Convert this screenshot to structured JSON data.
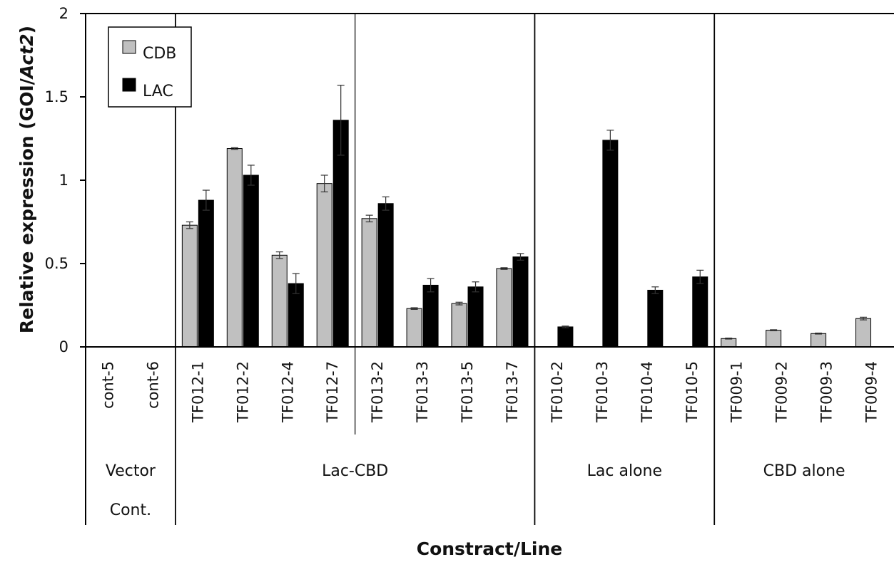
{
  "chart_data": {
    "type": "bar",
    "ylabel_prefix": "Relative expression (GOI/",
    "ylabel_italic": "Act2",
    "ylabel_suffix": ")",
    "xlabel": "Constract/Line",
    "ylim": [
      0,
      2
    ],
    "yticks": [
      "0",
      "0.5",
      "1",
      "1.5",
      "2"
    ],
    "legend_position": "top-left",
    "categories": [
      "cont-5",
      "cont-6",
      "TF012-1",
      "TF012-2",
      "TF012-4",
      "TF012-7",
      "TF013-2",
      "TF013-3",
      "TF013-5",
      "TF013-7",
      "TF010-2",
      "TF010-3",
      "TF010-4",
      "TF010-5",
      "TF009-1",
      "TF009-2",
      "TF009-3",
      "TF009-4"
    ],
    "series": [
      {
        "name": "CDB",
        "color": "#c0c0c0",
        "values": [
          0,
          0,
          0.73,
          1.19,
          0.55,
          0.98,
          0.77,
          0.23,
          0.26,
          0.47,
          0,
          0,
          0,
          0,
          0.05,
          0.1,
          0.08,
          0.17
        ],
        "errors": [
          0,
          0,
          0.02,
          0.005,
          0.02,
          0.05,
          0.02,
          0.005,
          0.008,
          0.005,
          0,
          0,
          0,
          0,
          0.003,
          0.003,
          0.003,
          0.008
        ]
      },
      {
        "name": "LAC",
        "color": "#000000",
        "values": [
          0,
          0,
          0.88,
          1.03,
          0.38,
          1.36,
          0.86,
          0.37,
          0.36,
          0.54,
          0.12,
          1.24,
          0.34,
          0.42,
          0,
          0,
          0,
          0
        ],
        "errors": [
          0,
          0,
          0.06,
          0.06,
          0.06,
          0.21,
          0.04,
          0.04,
          0.03,
          0.02,
          0.005,
          0.06,
          0.02,
          0.04,
          0,
          0,
          0,
          0
        ]
      }
    ],
    "groups": [
      {
        "label_lines": [
          "Vector",
          "Cont."
        ],
        "start": 0,
        "count": 2
      },
      {
        "label_lines": [
          "Lac-CBD"
        ],
        "start": 2,
        "count": 8
      },
      {
        "label_lines": [
          "Lac alone"
        ],
        "start": 10,
        "count": 4
      },
      {
        "label_lines": [
          "CBD alone"
        ],
        "start": 14,
        "count": 4
      }
    ],
    "subgroup_dividers_after": [
      5
    ]
  }
}
